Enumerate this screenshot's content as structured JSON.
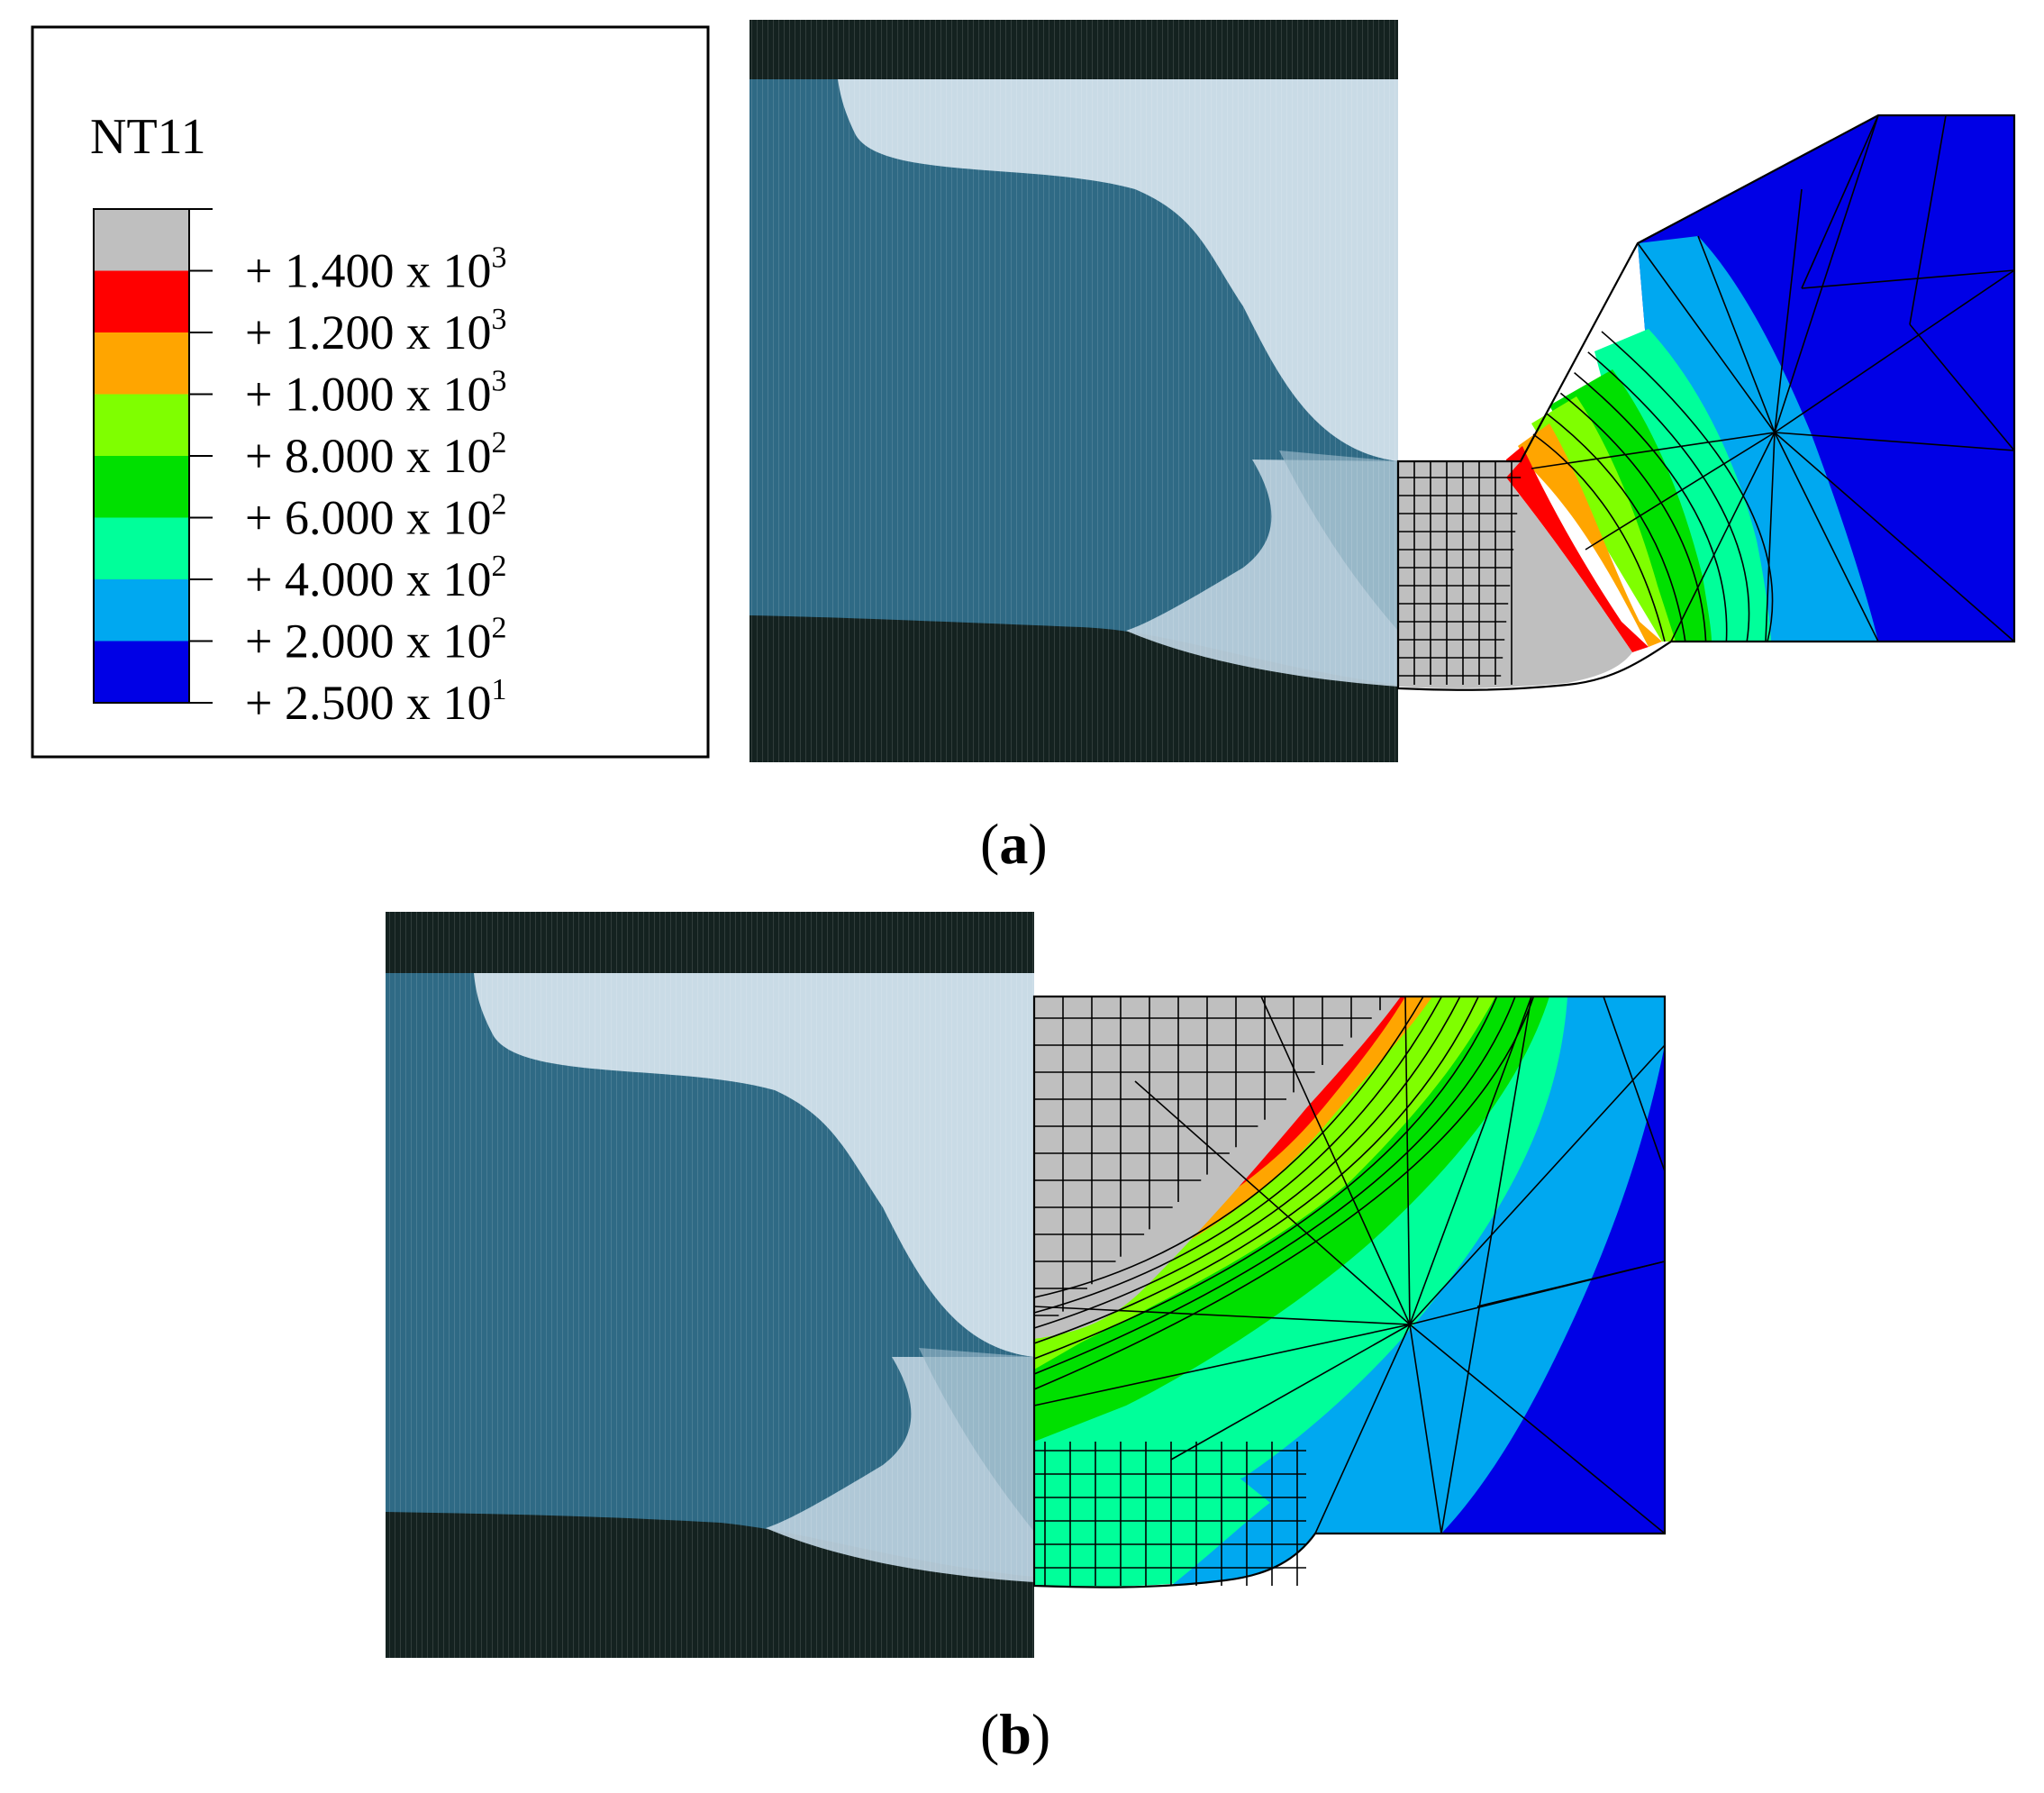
{
  "legend": {
    "title": "NT11",
    "entries": [
      {
        "label": "+ 1.400 x 10",
        "exp": "3"
      },
      {
        "label": "+ 1.200 x 10",
        "exp": "3"
      },
      {
        "label": "+ 1.000 x 10",
        "exp": "3"
      },
      {
        "label": "+ 8.000 x 10",
        "exp": "2"
      },
      {
        "label": "+ 6.000 x 10",
        "exp": "2"
      },
      {
        "label": "+ 4.000 x 10",
        "exp": "2"
      },
      {
        "label": "+ 2.000 x 10",
        "exp": "2"
      },
      {
        "label": "+ 2.500 x 10",
        "exp": "1"
      }
    ],
    "colors": [
      "#bfbfbf",
      "#ff0000",
      "#ffa500",
      "#7fff00",
      "#00e000",
      "#00ff9a",
      "#00a8f0",
      "#0000e6"
    ]
  },
  "panels": {
    "a": {
      "label": "a"
    },
    "b": {
      "label": "b"
    }
  },
  "colors": {
    "macro_base": "#2f6a85",
    "macro_bead": "#c9dbe6",
    "macro_dark": "#142220",
    "mesh_line": "#000000"
  }
}
